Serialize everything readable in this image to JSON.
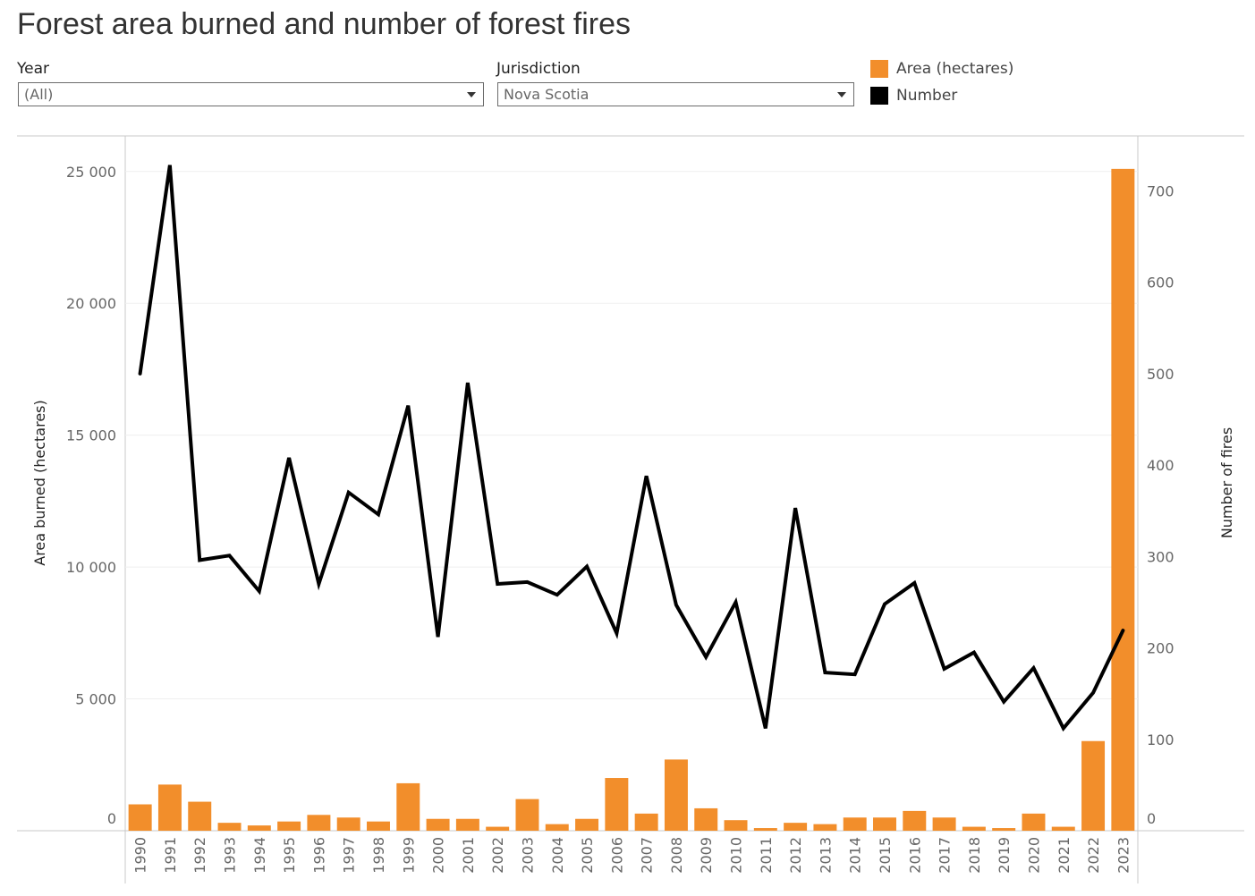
{
  "page": {
    "title": "Forest area burned and number of forest fires"
  },
  "filters": {
    "year": {
      "label": "Year",
      "value": "(All)"
    },
    "jurisdiction": {
      "label": "Jurisdiction",
      "value": "Nova Scotia"
    }
  },
  "legend": [
    {
      "label": "Area (hectares)",
      "color": "#F28E2B"
    },
    {
      "label": "Number",
      "color": "#000000"
    }
  ],
  "chart_data": {
    "type": "bar+line",
    "categories": [
      "1990",
      "1991",
      "1992",
      "1993",
      "1994",
      "1995",
      "1996",
      "1997",
      "1998",
      "1999",
      "2000",
      "2001",
      "2002",
      "2003",
      "2004",
      "2005",
      "2006",
      "2007",
      "2008",
      "2009",
      "2010",
      "2011",
      "2012",
      "2013",
      "2014",
      "2015",
      "2016",
      "2017",
      "2018",
      "2019",
      "2020",
      "2021",
      "2022",
      "2023"
    ],
    "series": [
      {
        "name": "Area (hectares)",
        "type": "bar",
        "axis": "left",
        "color": "#F28E2B",
        "values": [
          1000,
          1750,
          1100,
          300,
          200,
          350,
          600,
          500,
          350,
          1800,
          450,
          450,
          150,
          1200,
          250,
          450,
          2000,
          650,
          2700,
          850,
          400,
          100,
          300,
          250,
          500,
          500,
          750,
          500,
          150,
          100,
          650,
          150,
          3400,
          25100
        ]
      },
      {
        "name": "Number",
        "type": "line",
        "axis": "right",
        "color": "#000000",
        "values": [
          500,
          728,
          296,
          301,
          262,
          408,
          270,
          370,
          346,
          465,
          212,
          490,
          270,
          272,
          258,
          289,
          216,
          388,
          247,
          190,
          250,
          112,
          353,
          173,
          171,
          248,
          271,
          177,
          195,
          141,
          178,
          112,
          151,
          219
        ]
      }
    ],
    "ylabel": "Area burned (hectares)",
    "y2label": "Number of fires",
    "ylim": [
      0,
      26350
    ],
    "y2lim": [
      0,
      760
    ],
    "yticks": [
      0,
      5000,
      10000,
      15000,
      20000,
      25000
    ],
    "yticklabels": [
      "0",
      "5 000",
      "10 000",
      "15 000",
      "20 000",
      "25 000"
    ],
    "y2ticks": [
      0,
      100,
      200,
      300,
      400,
      500,
      600,
      700
    ],
    "y2ticklabels": [
      "0",
      "100",
      "200",
      "300",
      "400",
      "500",
      "600",
      "700"
    ],
    "grid": true
  }
}
